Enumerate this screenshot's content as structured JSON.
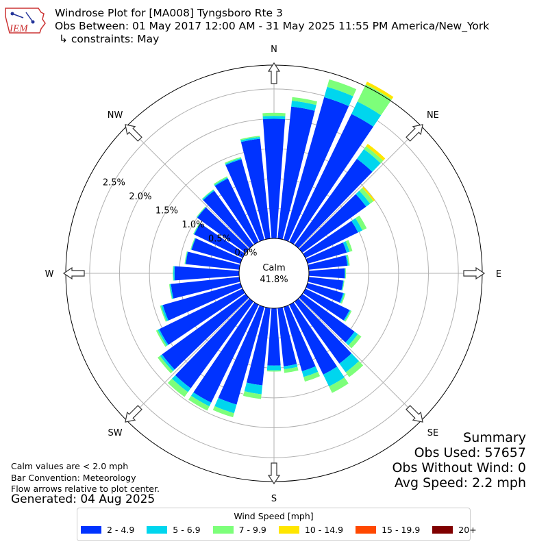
{
  "header": {
    "title": "Windrose Plot for [MA008] Tyngsboro Rte 3",
    "subtitle": "Obs Between: 01 May 2017 12:00 AM - 31 May 2025 11:55 PM America/New_York",
    "constraints": "↳ constraints: May",
    "logo_text": "IEM"
  },
  "notes": {
    "line1": "Calm values are < 2.0 mph",
    "line2": "Bar Convention: Meteorology",
    "line3": "Flow arrows relative to plot center.",
    "generated": "Generated: 04 Aug 2025"
  },
  "summary": {
    "title": "Summary",
    "obs_used": "Obs Used: 57657",
    "obs_without_wind": "Obs Without Wind: 0",
    "avg_speed": "Avg Speed: 2.2 mph"
  },
  "chart_data": {
    "type": "windrose",
    "calm_label": "Calm",
    "calm_value": "41.8%",
    "calm_percent": 41.8,
    "directions": [
      "N",
      "NE",
      "E",
      "SE",
      "S",
      "SW",
      "W",
      "NW"
    ],
    "radial_ticks": [
      0.0,
      0.5,
      1.0,
      1.5,
      2.0,
      2.5
    ],
    "radial_labels": [
      "0.0%",
      "0.5%",
      "1.0%",
      "1.5%",
      "2.0%",
      "2.5%"
    ],
    "rmax": 2.9,
    "legend_title": "Wind Speed [mph]",
    "bins": [
      {
        "label": "2 - 4.9",
        "color": "#0033ff"
      },
      {
        "label": "5 - 6.9",
        "color": "#00d6ee"
      },
      {
        "label": "7 - 9.9",
        "color": "#7dff7a"
      },
      {
        "label": "10 - 14.9",
        "color": "#ffe600"
      },
      {
        "label": "15 - 19.9",
        "color": "#ff4800"
      },
      {
        "label": "20+",
        "color": "#800000"
      }
    ],
    "sectors_deg": [
      0,
      10,
      20,
      30,
      40,
      50,
      60,
      70,
      80,
      90,
      100,
      110,
      120,
      130,
      140,
      150,
      160,
      170,
      180,
      190,
      200,
      210,
      220,
      230,
      240,
      250,
      260,
      270,
      280,
      290,
      300,
      310,
      320,
      330,
      340,
      350
    ],
    "values": [
      [
        2.0,
        0.05,
        0.05,
        0,
        0,
        0
      ],
      [
        2.22,
        0.1,
        0.06,
        0,
        0,
        0
      ],
      [
        2.48,
        0.18,
        0.13,
        0,
        0,
        0
      ],
      [
        2.38,
        0.23,
        0.32,
        0.05,
        0,
        0
      ],
      [
        1.78,
        0.2,
        0.06,
        0.05,
        0,
        0
      ],
      [
        1.32,
        0.08,
        0.07,
        0.03,
        0,
        0
      ],
      [
        0.98,
        0.08,
        0.08,
        0,
        0,
        0
      ],
      [
        0.68,
        0.05,
        0.05,
        0,
        0,
        0
      ],
      [
        0.65,
        0.02,
        0.02,
        0,
        0,
        0
      ],
      [
        0.6,
        0.01,
        0.01,
        0,
        0,
        0
      ],
      [
        0.58,
        0.01,
        0.01,
        0,
        0,
        0
      ],
      [
        0.62,
        0.02,
        0.02,
        0,
        0,
        0
      ],
      [
        0.82,
        0.02,
        0.02,
        0,
        0,
        0
      ],
      [
        1.08,
        0.07,
        0.07,
        0,
        0,
        0
      ],
      [
        1.28,
        0.18,
        0.1,
        0,
        0,
        0
      ],
      [
        1.3,
        0.22,
        0.12,
        0,
        0,
        0
      ],
      [
        1.12,
        0.1,
        0.08,
        0,
        0,
        0
      ],
      [
        0.98,
        0.05,
        0.06,
        0,
        0,
        0
      ],
      [
        0.96,
        0.08,
        0.02,
        0,
        0,
        0
      ],
      [
        1.3,
        0.15,
        0.08,
        0,
        0,
        0
      ],
      [
        1.7,
        0.15,
        0.07,
        0,
        0,
        0
      ],
      [
        1.82,
        0.07,
        0.08,
        0,
        0,
        0
      ],
      [
        1.79,
        0.08,
        0.1,
        0,
        0,
        0
      ],
      [
        1.73,
        0.04,
        0.05,
        0,
        0,
        0
      ],
      [
        1.55,
        0.03,
        0.03,
        0,
        0,
        0
      ],
      [
        1.35,
        0.03,
        0.02,
        0,
        0,
        0
      ],
      [
        1.15,
        0.02,
        0.01,
        0,
        0,
        0
      ],
      [
        1.08,
        0.02,
        0.01,
        0,
        0,
        0
      ],
      [
        0.9,
        0.01,
        0.01,
        0,
        0,
        0
      ],
      [
        0.85,
        0.01,
        0.01,
        0,
        0,
        0
      ],
      [
        0.9,
        0.01,
        0.01,
        0,
        0,
        0
      ],
      [
        1.0,
        0.01,
        0.01,
        0,
        0,
        0
      ],
      [
        1.12,
        0.02,
        0.01,
        0,
        0,
        0
      ],
      [
        1.18,
        0.02,
        0.02,
        0,
        0,
        0
      ],
      [
        1.4,
        0.02,
        0.02,
        0,
        0,
        0
      ],
      [
        1.68,
        0.03,
        0.02,
        0,
        0,
        0
      ]
    ]
  }
}
